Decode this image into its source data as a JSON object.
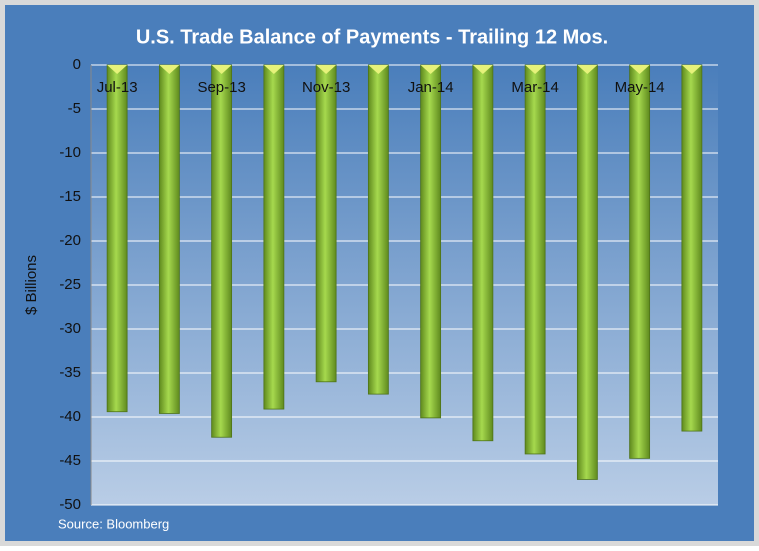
{
  "chart_data": {
    "type": "bar",
    "title": "U.S. Trade Balance of Payments - Trailing 12 Mos.",
    "ylabel": "$ Billions",
    "source": "Source: Bloomberg",
    "categories": [
      "Jul-13",
      null,
      "Sep-13",
      null,
      "Nov-13",
      null,
      "Jan-14",
      null,
      "Mar-14",
      null,
      "May-14",
      null
    ],
    "values": [
      -39.4,
      -39.6,
      -42.3,
      -39.1,
      -36.0,
      -37.4,
      -40.1,
      -42.7,
      -44.2,
      -47.1,
      -44.7,
      -41.6
    ],
    "color": "#8cbf3a",
    "ylim": [
      -50,
      0
    ],
    "yticks": [
      0,
      -5,
      -10,
      -15,
      -20,
      -25,
      -30,
      -35,
      -40,
      -45,
      -50
    ],
    "grid": true
  }
}
